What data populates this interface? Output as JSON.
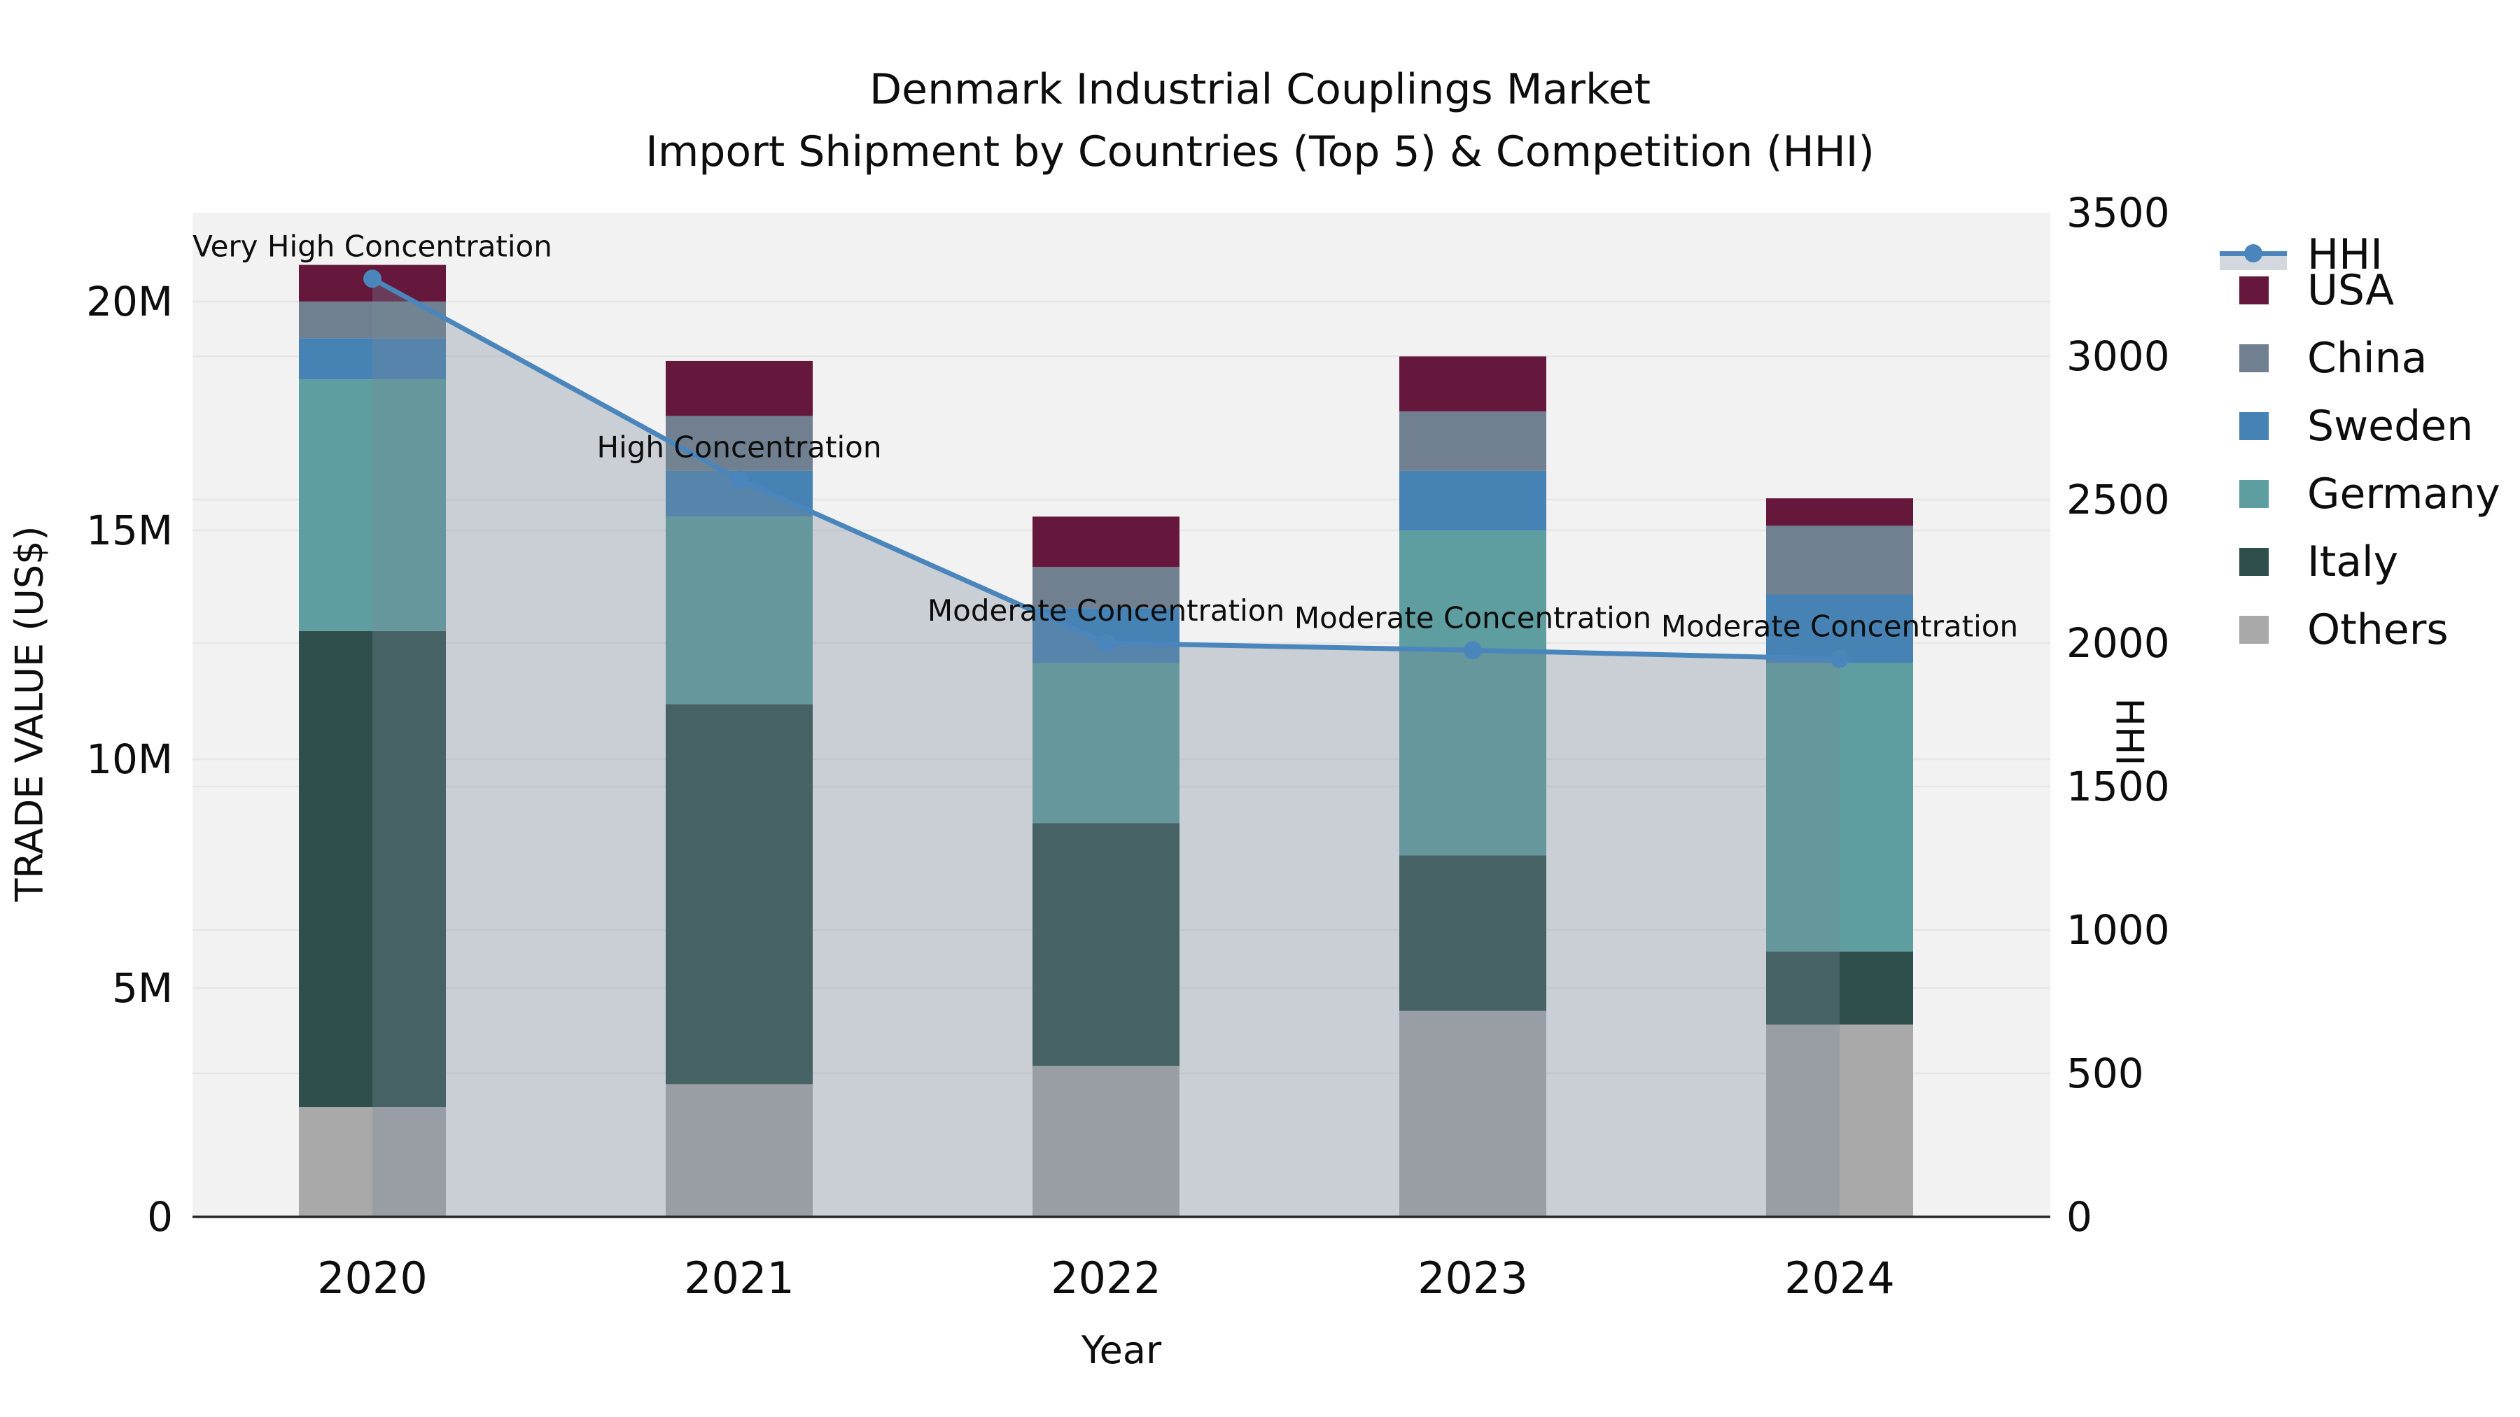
{
  "title": {
    "line1": "Denmark Industrial Couplings Market",
    "line2": "Import Shipment by Countries (Top 5) & Competition (HHI)"
  },
  "axes": {
    "x_label": "Year",
    "y_left_label": "TRADE VALUE (US$)",
    "y_right_label": "HHI",
    "y_left_ticks": [
      {
        "label": "0",
        "value": 0
      },
      {
        "label": "5M",
        "value": 5
      },
      {
        "label": "10M",
        "value": 10
      },
      {
        "label": "15M",
        "value": 15
      },
      {
        "label": "20M",
        "value": 20
      }
    ],
    "y_right_ticks": [
      {
        "label": "0",
        "value": 0
      },
      {
        "label": "500",
        "value": 500
      },
      {
        "label": "1000",
        "value": 1000
      },
      {
        "label": "1500",
        "value": 1500
      },
      {
        "label": "2000",
        "value": 2000
      },
      {
        "label": "2500",
        "value": 2500
      },
      {
        "label": "3000",
        "value": 3000
      },
      {
        "label": "3500",
        "value": 3500
      }
    ]
  },
  "legend": {
    "entries": [
      {
        "label": "HHI",
        "type": "line",
        "color": "#4A86BC"
      },
      {
        "label": "USA",
        "type": "patch",
        "color": "#66173C"
      },
      {
        "label": "China",
        "type": "patch",
        "color": "#708090"
      },
      {
        "label": "Sweden",
        "type": "patch",
        "color": "#4682B4"
      },
      {
        "label": "Germany",
        "type": "patch",
        "color": "#5F9EA0"
      },
      {
        "label": "Italy",
        "type": "patch",
        "color": "#2F4F4C"
      },
      {
        "label": "Others",
        "type": "patch",
        "color": "#A9A9A9"
      }
    ]
  },
  "annotations": [
    "Very High Concentration",
    "High Concentration",
    "Moderate Concentration",
    "Moderate Concentration",
    "Moderate Concentration"
  ],
  "chart_data": {
    "type": "bar+line",
    "title": "Denmark Industrial Couplings Market — Import Shipment by Countries (Top 5) & Competition (HHI)",
    "categories": [
      "2020",
      "2021",
      "2022",
      "2023",
      "2024"
    ],
    "bar_unit": "Million US$",
    "stack_order_bottom_to_top": [
      "Others",
      "Italy",
      "Germany",
      "Sweden",
      "China",
      "USA"
    ],
    "series": [
      {
        "name": "Others",
        "color": "#A9A9A9",
        "values": [
          2.4,
          2.9,
          3.3,
          4.5,
          4.2
        ]
      },
      {
        "name": "Italy",
        "color": "#2F4F4C",
        "values": [
          10.4,
          8.3,
          5.3,
          3.4,
          1.6
        ]
      },
      {
        "name": "Germany",
        "color": "#5F9EA0",
        "values": [
          5.5,
          4.1,
          3.5,
          7.1,
          6.3
        ]
      },
      {
        "name": "Sweden",
        "color": "#4682B4",
        "values": [
          0.9,
          1.0,
          1.2,
          1.3,
          1.5
        ]
      },
      {
        "name": "China",
        "color": "#708090",
        "values": [
          0.8,
          1.2,
          0.9,
          1.3,
          1.5
        ]
      },
      {
        "name": "USA",
        "color": "#66173C",
        "values": [
          0.8,
          1.2,
          1.1,
          1.2,
          0.6
        ]
      }
    ],
    "bar_totals": [
      20.8,
      18.7,
      15.3,
      18.8,
      15.7
    ],
    "line_series": {
      "name": "HHI",
      "axis": "right",
      "color": "#4A86BC",
      "fill_color": "rgba(119,136,153,0.33)",
      "values": [
        3270,
        2570,
        2000,
        1975,
        1945
      ]
    },
    "xlabel": "Year",
    "ylabel_left": "TRADE VALUE (US$)",
    "ylabel_right": "HHI",
    "ylim_left_millions": [
      0,
      21.94
    ],
    "ylim_right": [
      0,
      3500
    ],
    "grid": true,
    "legend_position": "right",
    "plot_bg": "#F2F2F2",
    "grid_color": "#E6E6E6"
  }
}
